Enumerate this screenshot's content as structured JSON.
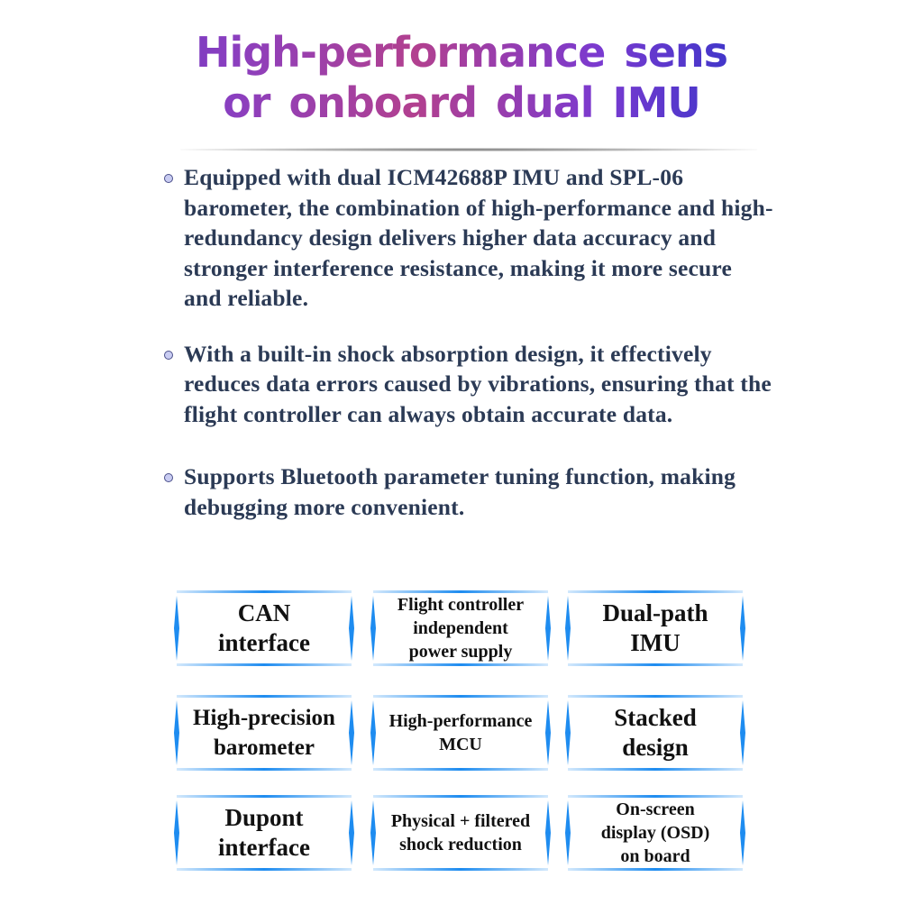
{
  "title": {
    "line1": "High-performance sens",
    "line2": "or onboard dual IMU"
  },
  "bullets": [
    "Equipped with dual ICM42688P IMU and SPL-06 barometer, the combination of high-performance and high-redundancy design delivers higher data accuracy and stronger interference resistance, making it more secure and reliable.",
    "With a built-in shock absorption design, it effectively reduces data errors caused by vibrations, ensuring that the flight controller can always obtain accurate data.",
    "Supports Bluetooth parameter tuning function, making debugging more convenient."
  ],
  "features": [
    {
      "line1": "CAN",
      "line2": "interface"
    },
    {
      "line1": "Flight controller",
      "line2": "independent",
      "line3": "power supply"
    },
    {
      "line1": "Dual-path",
      "line2": "IMU"
    },
    {
      "line1": "High-precision",
      "line2": "barometer"
    },
    {
      "line1": "High-performance",
      "line2": "MCU"
    },
    {
      "line1": "Stacked",
      "line2": "design"
    },
    {
      "line1": "Dupont",
      "line2": "interface"
    },
    {
      "line1": "Physical + filtered",
      "line2": "shock reduction"
    },
    {
      "line1": "On-screen",
      "line2": "display (OSD)",
      "line3": "on board"
    }
  ],
  "colors": {
    "text": "#2b3a55",
    "accent": "#1e8cf0",
    "title_gradient": [
      "#4a2fc4",
      "#b2408f",
      "#3d36c9"
    ]
  },
  "icons": {
    "bullet": "circle-bullet-icon"
  }
}
